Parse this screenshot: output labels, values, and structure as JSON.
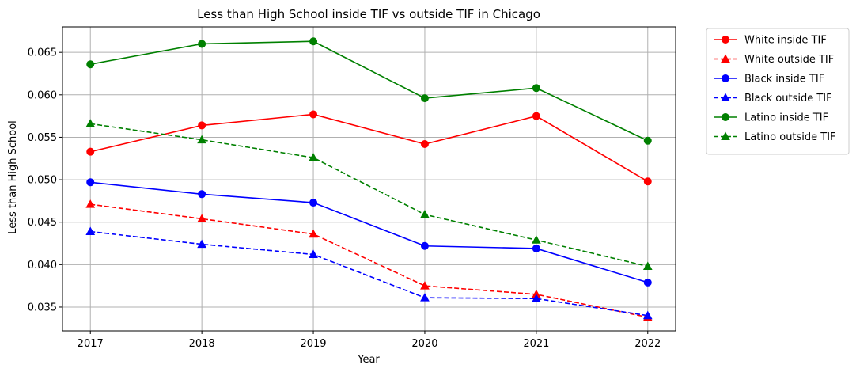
{
  "chart_data": {
    "type": "line",
    "title": "Less than High School inside TIF vs outside TIF in Chicago",
    "xlabel": "Year",
    "ylabel": "Less than High School",
    "x": [
      2017,
      2018,
      2019,
      2020,
      2021,
      2022
    ],
    "x_tick_labels": [
      "2017",
      "2018",
      "2019",
      "2020",
      "2021",
      "2022"
    ],
    "xlim": [
      2016.75,
      2022.25
    ],
    "ylim": [
      0.0322,
      0.068
    ],
    "y_ticks": [
      0.035,
      0.04,
      0.045,
      0.05,
      0.055,
      0.06,
      0.065
    ],
    "y_tick_labels": [
      "0.035",
      "0.040",
      "0.045",
      "0.050",
      "0.055",
      "0.060",
      "0.065"
    ],
    "grid": true,
    "legend_position": "outside-top-right",
    "series": [
      {
        "name": "White inside TIF",
        "color": "#ff0000",
        "linestyle": "solid",
        "marker": "circle",
        "values": [
          0.0533,
          0.0564,
          0.0577,
          0.0542,
          0.0575,
          0.0498
        ]
      },
      {
        "name": "White outside TIF",
        "color": "#ff0000",
        "linestyle": "dashed",
        "marker": "triangle",
        "values": [
          0.0471,
          0.0454,
          0.0436,
          0.0375,
          0.0365,
          0.0338
        ]
      },
      {
        "name": "Black inside TIF",
        "color": "#0000ff",
        "linestyle": "solid",
        "marker": "circle",
        "values": [
          0.0497,
          0.0483,
          0.0473,
          0.0422,
          0.0419,
          0.0379
        ]
      },
      {
        "name": "Black outside TIF",
        "color": "#0000ff",
        "linestyle": "dashed",
        "marker": "triangle",
        "values": [
          0.0439,
          0.0424,
          0.0412,
          0.0361,
          0.036,
          0.034
        ]
      },
      {
        "name": "Latino inside TIF",
        "color": "#008000",
        "linestyle": "solid",
        "marker": "circle",
        "values": [
          0.0636,
          0.066,
          0.0663,
          0.0596,
          0.0608,
          0.0546
        ]
      },
      {
        "name": "Latino outside TIF",
        "color": "#008000",
        "linestyle": "dashed",
        "marker": "triangle",
        "values": [
          0.0566,
          0.0547,
          0.0526,
          0.0459,
          0.0429,
          0.0398
        ]
      }
    ]
  }
}
